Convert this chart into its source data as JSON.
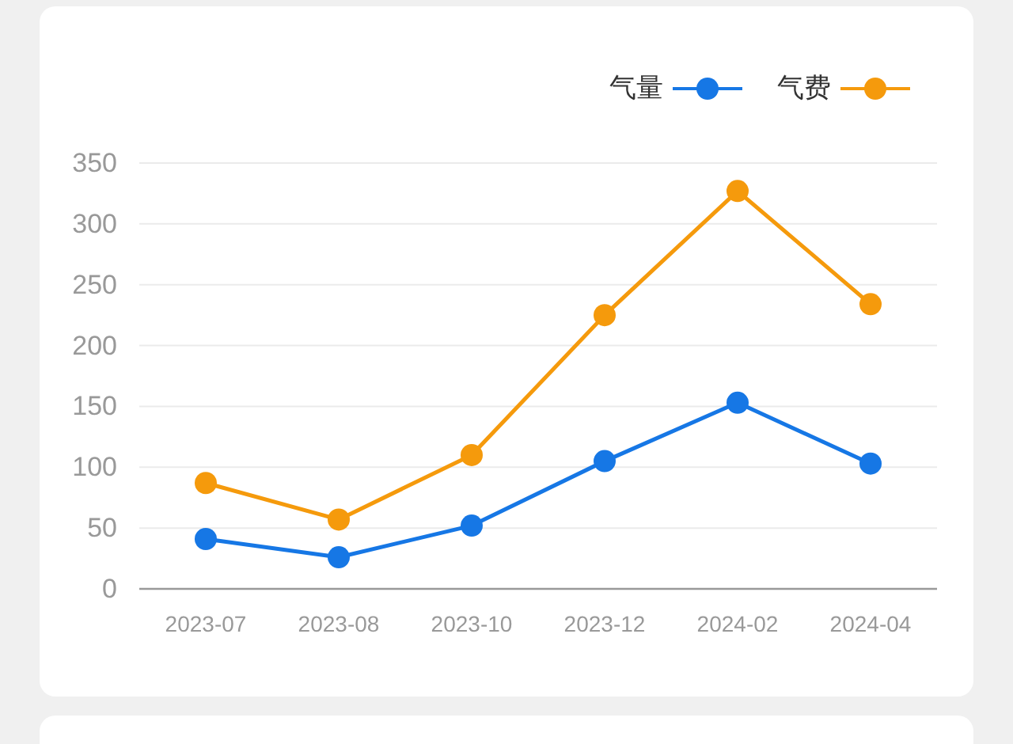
{
  "chart_data": {
    "type": "line",
    "categories": [
      "2023-07",
      "2023-08",
      "2023-10",
      "2023-12",
      "2024-02",
      "2024-04"
    ],
    "series": [
      {
        "name": "气量",
        "color": "#1677e5",
        "values": [
          41,
          26,
          52,
          105,
          153,
          103
        ]
      },
      {
        "name": "气费",
        "color": "#f59a0c",
        "values": [
          87,
          57,
          110,
          225,
          327,
          234
        ]
      }
    ],
    "ylim": [
      0,
      350
    ],
    "yticks": [
      0,
      50,
      100,
      150,
      200,
      250,
      300,
      350
    ],
    "grid": "y",
    "legend": "top right",
    "marker": "circle",
    "line_style": "solid"
  }
}
